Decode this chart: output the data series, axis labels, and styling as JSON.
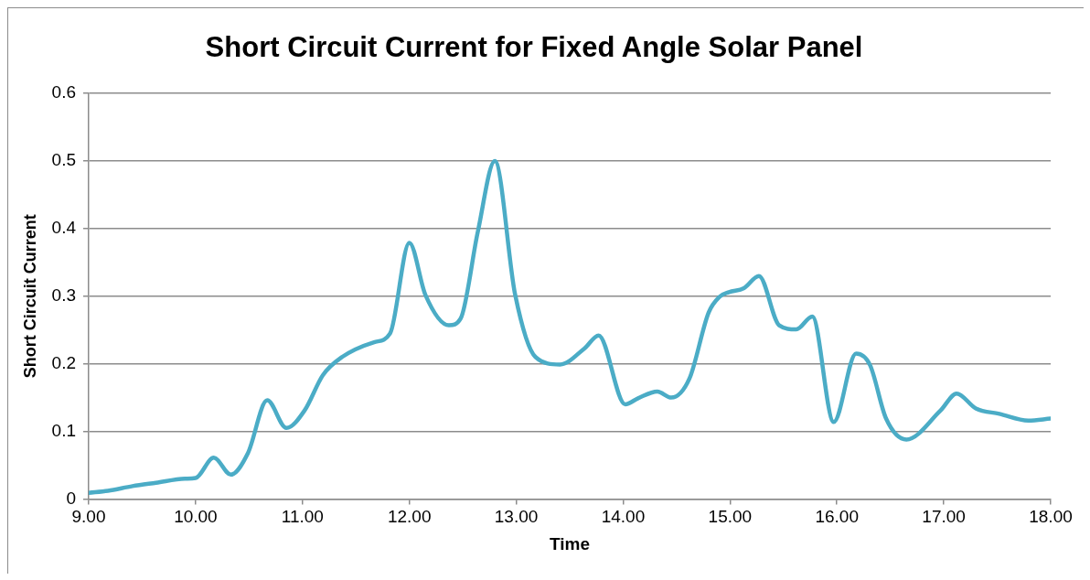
{
  "chart_data": {
    "type": "line",
    "title": "Short Circuit Current for Fixed Angle Solar Panel",
    "xlabel": "Time",
    "ylabel": "Short Circuit Current",
    "x": [
      9.0,
      9.18,
      9.41,
      9.63,
      9.9,
      10.0,
      10.17,
      10.33,
      10.49,
      10.67,
      10.85,
      11.02,
      11.19,
      11.37,
      11.67,
      11.82,
      12.0,
      12.15,
      12.37,
      12.48,
      12.64,
      12.8,
      12.99,
      13.18,
      13.41,
      13.64,
      13.77,
      14.02,
      14.14,
      14.32,
      14.45,
      14.62,
      14.8,
      14.9,
      14.99,
      15.13,
      15.27,
      15.46,
      15.62,
      15.77,
      15.97,
      16.18,
      16.31,
      16.46,
      16.65,
      16.97,
      17.12,
      17.3,
      17.52,
      17.79,
      18.0
    ],
    "series": [
      {
        "color": "#4bacc6",
        "values": [
          0.009,
          0.012,
          0.019,
          0.024,
          0.03,
          0.031,
          0.061,
          0.036,
          0.068,
          0.146,
          0.105,
          0.131,
          0.183,
          0.21,
          0.232,
          0.245,
          0.379,
          0.302,
          0.257,
          0.267,
          0.395,
          0.5,
          0.302,
          0.21,
          0.199,
          0.223,
          0.242,
          0.14,
          0.149,
          0.159,
          0.15,
          0.178,
          0.276,
          0.299,
          0.306,
          0.312,
          0.33,
          0.257,
          0.251,
          0.27,
          0.114,
          0.215,
          0.198,
          0.119,
          0.088,
          0.131,
          0.156,
          0.134,
          0.126,
          0.116,
          0.119
        ]
      }
    ],
    "xlim": [
      9,
      18
    ],
    "xticks": [
      {
        "value": 9,
        "label": "9.00"
      },
      {
        "value": 10,
        "label": "10.00"
      },
      {
        "value": 11,
        "label": "11.00"
      },
      {
        "value": 12,
        "label": "12.00"
      },
      {
        "value": 13,
        "label": "13.00"
      },
      {
        "value": 14,
        "label": "14.00"
      },
      {
        "value": 15,
        "label": "15.00"
      },
      {
        "value": 16,
        "label": "16.00"
      },
      {
        "value": 17,
        "label": "17.00"
      },
      {
        "value": 18,
        "label": "18.00"
      }
    ],
    "ylim": [
      0,
      0.6
    ],
    "yticks": [
      0,
      0.1,
      0.2,
      0.3,
      0.4,
      0.5,
      0.6
    ],
    "grid": "y",
    "legend": false,
    "marker": "none",
    "line_style": "solid"
  }
}
